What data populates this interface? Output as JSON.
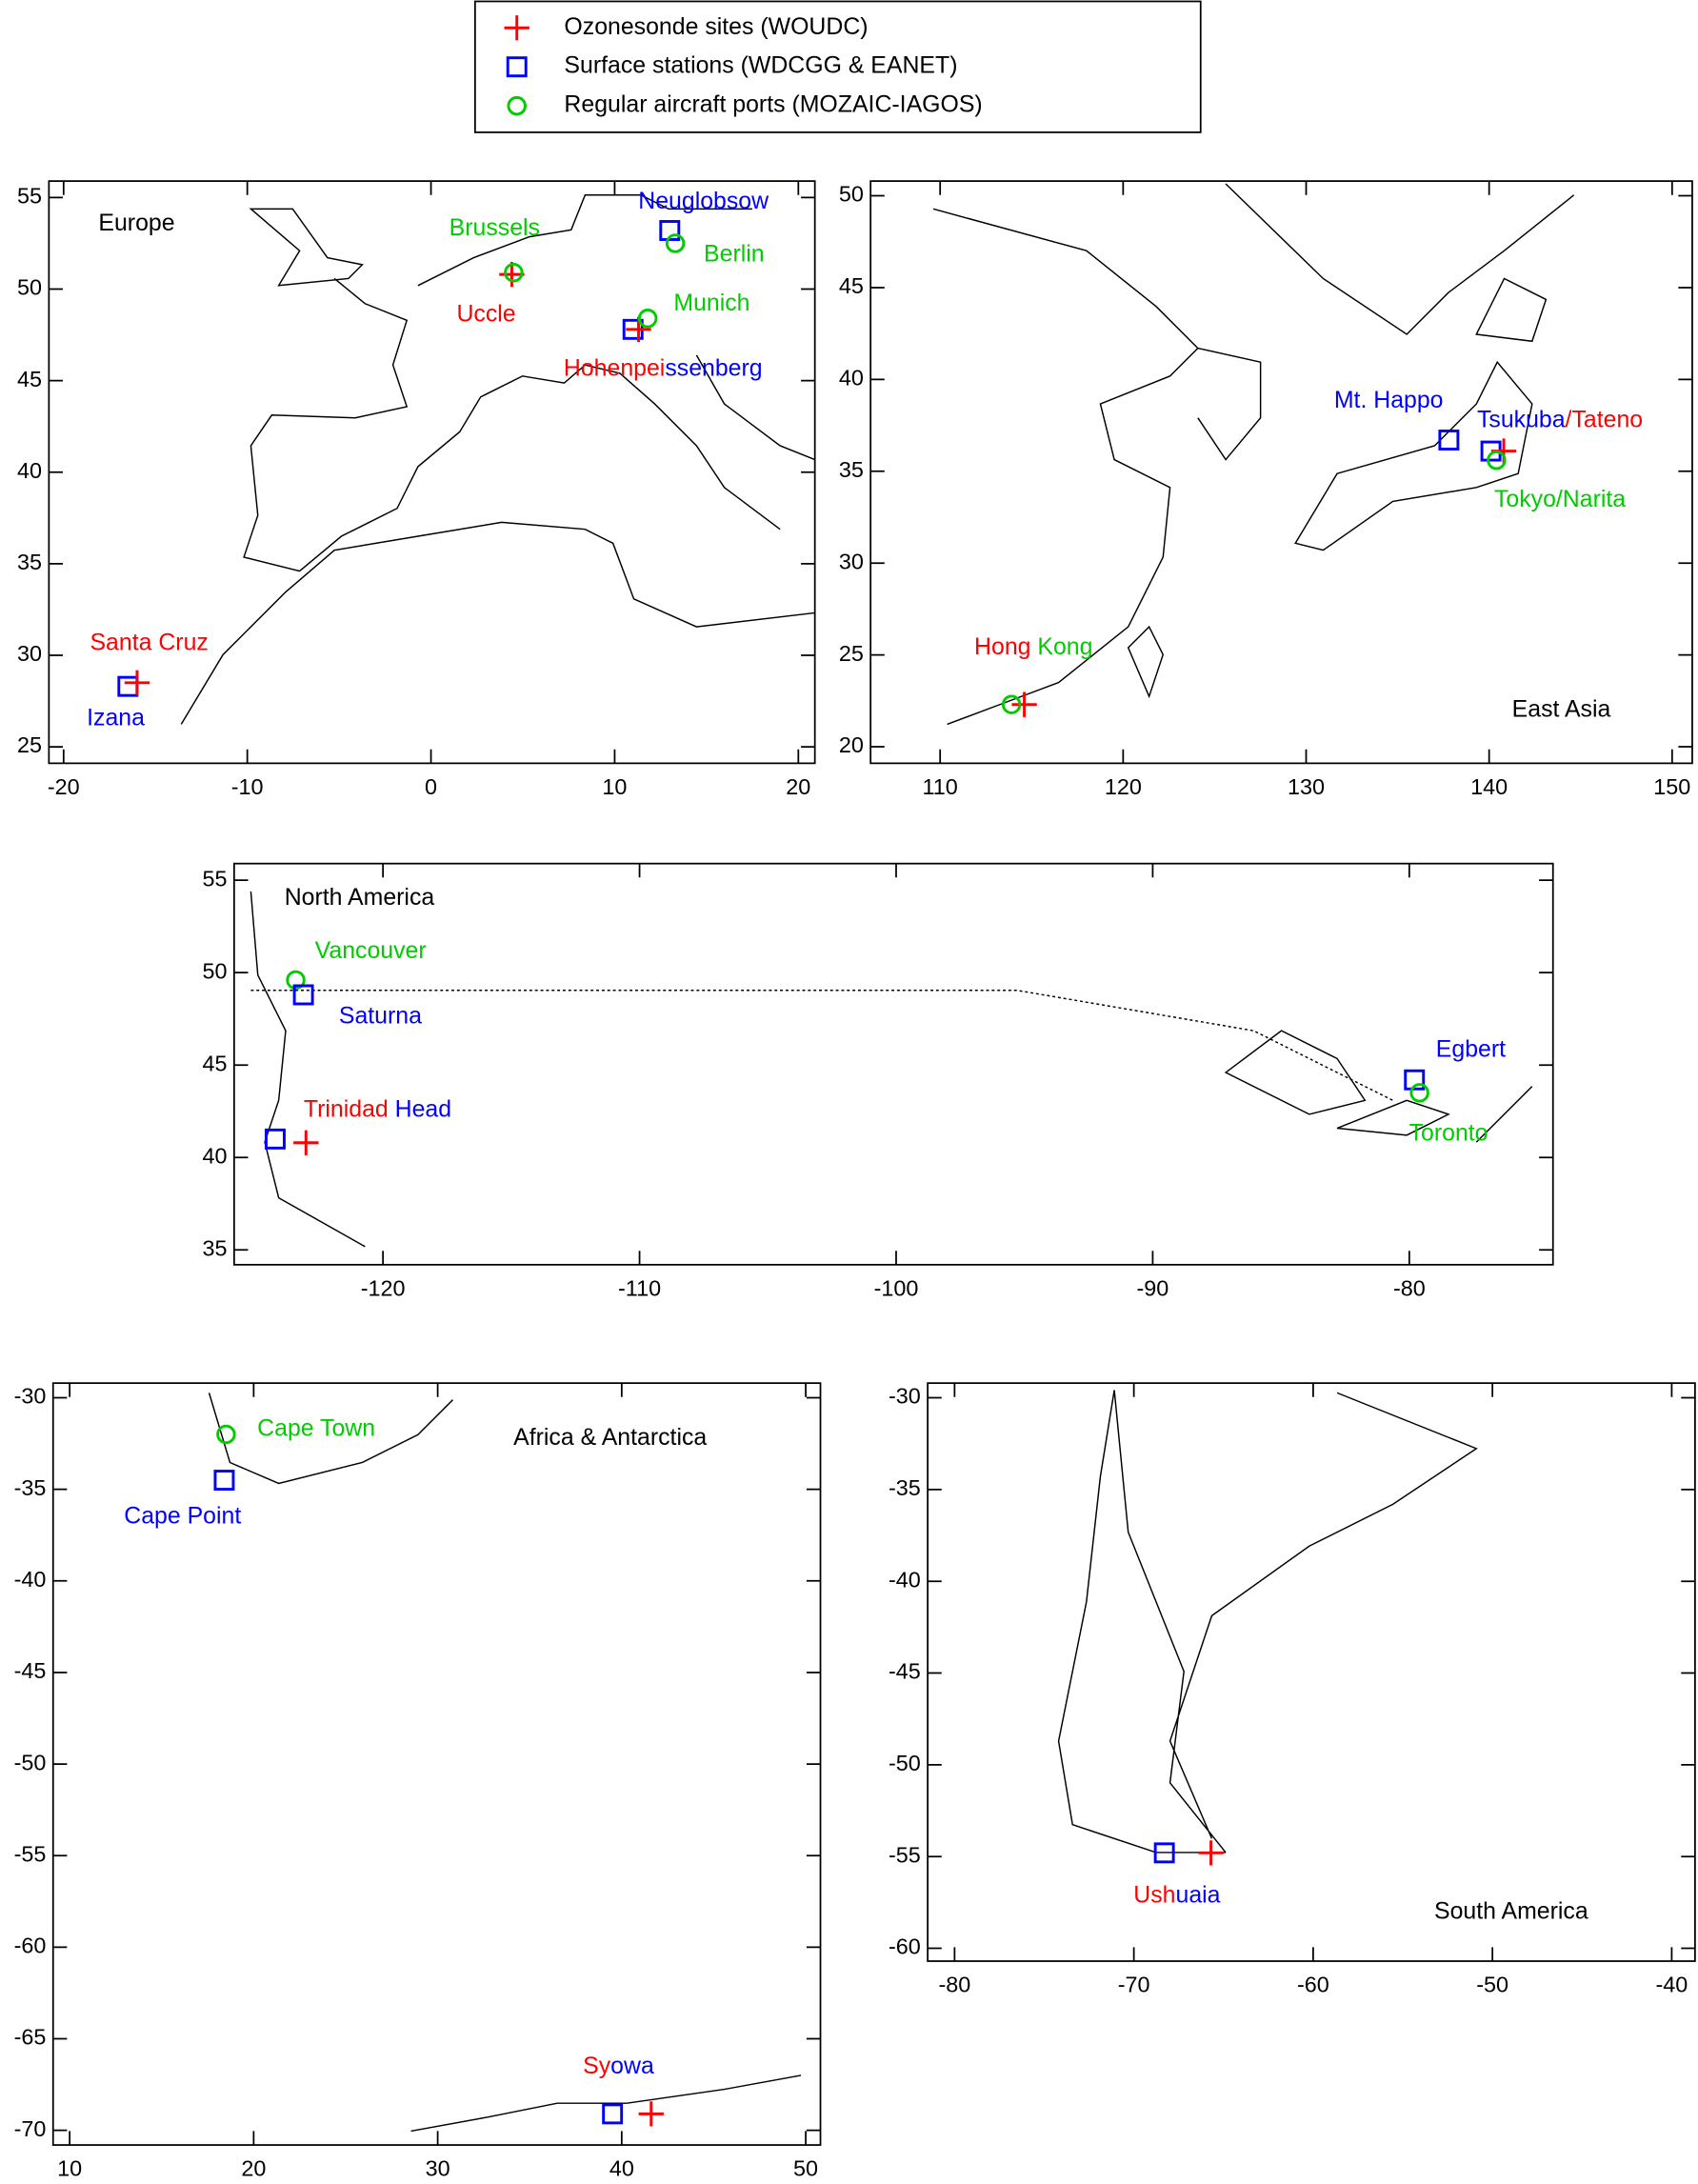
{
  "legend": [
    {
      "name": "Ozonesonde sites (WOUDC)",
      "kind": "plus",
      "color": "#ff0000"
    },
    {
      "name": "Surface stations (WDCGG & EANET)",
      "kind": "square",
      "color": "#0000ff"
    },
    {
      "name": "Regular aircraft ports (MOZAIC-IAGOS)",
      "kind": "circle",
      "color": "#00cc00"
    }
  ],
  "panels": [
    {
      "title": "Europe",
      "xlim": [
        -20.8,
        20.9
      ],
      "ylim": [
        24.1,
        55.9
      ],
      "xticks": [
        -20,
        -10,
        0,
        10,
        20
      ],
      "yticks": [
        25,
        30,
        35,
        40,
        45,
        50,
        55
      ],
      "sites": [
        {
          "legend": 0,
          "lon": 4.4,
          "lat": 50.8
        },
        {
          "legend": 2,
          "lon": 4.5,
          "lat": 50.9
        },
        {
          "legend": 1,
          "lon": 13.0,
          "lat": 53.2
        },
        {
          "legend": 2,
          "lon": 13.3,
          "lat": 52.5
        },
        {
          "legend": 1,
          "lon": 11.0,
          "lat": 47.8
        },
        {
          "legend": 0,
          "lon": 11.3,
          "lat": 47.8
        },
        {
          "legend": 2,
          "lon": 11.8,
          "lat": 48.4
        },
        {
          "legend": 1,
          "lon": -16.5,
          "lat": 28.3
        },
        {
          "legend": 0,
          "lon": -16.0,
          "lat": 28.5
        }
      ],
      "labels": [
        [
          {
            "text": "Brussels",
            "legend": 2
          }
        ],
        [
          {
            "text": "Uccle",
            "legend": 0
          }
        ],
        [
          {
            "text": "Neuglobsow",
            "legend": 1
          }
        ],
        [
          {
            "text": "Berlin",
            "legend": 2
          }
        ],
        [
          {
            "text": "Munich",
            "legend": 2
          }
        ],
        [
          {
            "text": "Hohenpei",
            "legend": 0
          },
          {
            "text": "ssenberg",
            "legend": 1
          }
        ],
        [
          {
            "text": "Santa Cruz",
            "legend": 0
          }
        ],
        [
          {
            "text": "Izana",
            "legend": 1
          }
        ]
      ]
    },
    {
      "title": "East Asia",
      "xlim": [
        106.2,
        151.1
      ],
      "ylim": [
        19.1,
        50.8
      ],
      "xticks": [
        110,
        120,
        130,
        140,
        150
      ],
      "yticks": [
        20,
        25,
        30,
        35,
        40,
        45,
        50
      ],
      "sites": [
        {
          "legend": 1,
          "lon": 137.8,
          "lat": 36.7
        },
        {
          "legend": 1,
          "lon": 140.1,
          "lat": 36.1
        },
        {
          "legend": 0,
          "lon": 140.8,
          "lat": 36.1
        },
        {
          "legend": 2,
          "lon": 140.4,
          "lat": 35.6
        },
        {
          "legend": 0,
          "lon": 114.6,
          "lat": 22.3
        },
        {
          "legend": 2,
          "lon": 113.9,
          "lat": 22.3
        }
      ],
      "labels": [
        [
          {
            "text": "Mt. Happo",
            "legend": 1
          }
        ],
        [
          {
            "text": "Tsukuba",
            "legend": 1
          },
          {
            "text": "/Tateno",
            "legend": 0
          }
        ],
        [
          {
            "text": "Tokyo/Narita",
            "legend": 2
          }
        ],
        [
          {
            "text": "Hong ",
            "legend": 0
          },
          {
            "text": "Kong",
            "legend": 2
          }
        ]
      ]
    },
    {
      "title": "North America",
      "xlim": [
        -125.8,
        -74.4
      ],
      "ylim": [
        34.2,
        55.9
      ],
      "xticks": [
        -120,
        -110,
        -100,
        -90,
        -80
      ],
      "yticks": [
        35,
        40,
        45,
        50,
        55
      ],
      "sites": [
        {
          "legend": 2,
          "lon": -123.4,
          "lat": 49.6
        },
        {
          "legend": 1,
          "lon": -123.1,
          "lat": 48.8
        },
        {
          "legend": 1,
          "lon": -124.2,
          "lat": 41.0
        },
        {
          "legend": 0,
          "lon": -123.0,
          "lat": 40.8
        },
        {
          "legend": 1,
          "lon": -79.8,
          "lat": 44.2
        },
        {
          "legend": 2,
          "lon": -79.6,
          "lat": 43.5
        }
      ],
      "labels": [
        [
          {
            "text": "Vancouver",
            "legend": 2
          }
        ],
        [
          {
            "text": "Saturna",
            "legend": 1
          }
        ],
        [
          {
            "text": "Trinidad ",
            "legend": 0
          },
          {
            "text": "Head",
            "legend": 1
          }
        ],
        [
          {
            "text": "Egbert",
            "legend": 1
          }
        ],
        [
          {
            "text": "Toronto",
            "legend": 2
          }
        ]
      ]
    },
    {
      "title": "Africa & Antarctica",
      "xlim": [
        9.1,
        50.8
      ],
      "ylim": [
        -70.8,
        -29.2
      ],
      "xticks": [
        10,
        20,
        30,
        40,
        50
      ],
      "yticks": [
        -70,
        -65,
        -60,
        -55,
        -50,
        -45,
        -40,
        -35,
        -30
      ],
      "sites": [
        {
          "legend": 2,
          "lon": 18.5,
          "lat": -32.0
        },
        {
          "legend": 1,
          "lon": 18.4,
          "lat": -34.5
        },
        {
          "legend": 1,
          "lon": 39.5,
          "lat": -69.1
        },
        {
          "legend": 0,
          "lon": 41.6,
          "lat": -69.1
        }
      ],
      "labels": [
        [
          {
            "text": "Cape Town",
            "legend": 2
          }
        ],
        [
          {
            "text": "Cape Point",
            "legend": 1
          }
        ],
        [
          {
            "text": "Sy",
            "legend": 0
          },
          {
            "text": "owa",
            "legend": 1
          }
        ]
      ]
    },
    {
      "title": "South America",
      "xlim": [
        -81.5,
        -38.7
      ],
      "ylim": [
        -60.7,
        -29.2
      ],
      "xticks": [
        -80,
        -70,
        -60,
        -50,
        -40
      ],
      "yticks": [
        -60,
        -55,
        -50,
        -45,
        -40,
        -35,
        -30
      ],
      "sites": [
        {
          "legend": 1,
          "lon": -68.3,
          "lat": -54.8
        },
        {
          "legend": 0,
          "lon": -65.7,
          "lat": -54.8
        }
      ],
      "labels": [
        [
          {
            "text": "Ush",
            "legend": 0
          },
          {
            "text": "uaia",
            "legend": 1
          }
        ]
      ]
    }
  ]
}
